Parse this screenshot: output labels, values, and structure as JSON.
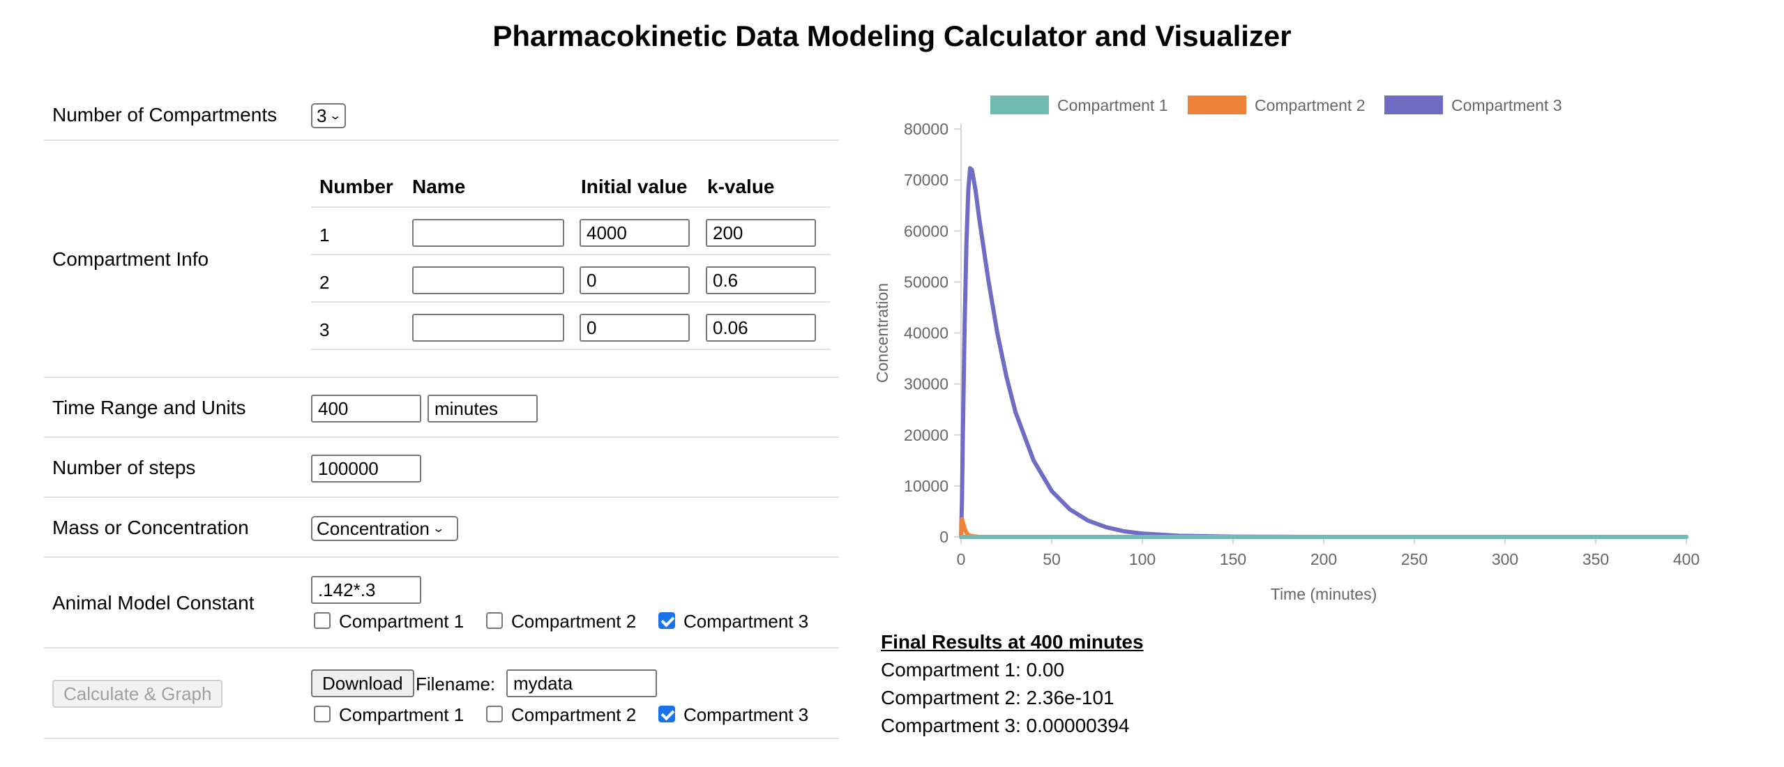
{
  "title": "Pharmacokinetic Data Modeling Calculator and Visualizer",
  "form": {
    "compartments_label": "Number of Compartments",
    "compartments_value": "3",
    "info_label": "Compartment Info",
    "table": {
      "headers": [
        "Number",
        "Name",
        "Initial value",
        "k-value"
      ],
      "rows": [
        {
          "number": "1",
          "name": "",
          "initial": "4000",
          "k": "200"
        },
        {
          "number": "2",
          "name": "",
          "initial": "0",
          "k": "0.6"
        },
        {
          "number": "3",
          "name": "",
          "initial": "0",
          "k": "0.06"
        }
      ]
    },
    "time_label": "Time Range and Units",
    "time_value": "400",
    "time_units": "minutes",
    "steps_label": "Number of steps",
    "steps_value": "100000",
    "mass_label": "Mass or Concentration",
    "mass_value": "Concentration",
    "animal_label": "Animal Model Constant",
    "animal_value": ".142*.3",
    "animal_checks": [
      {
        "label": "Compartment 1",
        "checked": false
      },
      {
        "label": "Compartment 2",
        "checked": false
      },
      {
        "label": "Compartment 3",
        "checked": true
      }
    ],
    "calc_button": "Calculate & Graph",
    "download_button": "Download",
    "filename_label": "Filename:",
    "filename_value": "mydata",
    "download_checks": [
      {
        "label": "Compartment 1",
        "checked": false
      },
      {
        "label": "Compartment 2",
        "checked": false
      },
      {
        "label": "Compartment 3",
        "checked": true
      }
    ]
  },
  "chart_data": {
    "type": "line",
    "xlabel": "Time (minutes)",
    "ylabel": "Concentration",
    "xlim": [
      0,
      400
    ],
    "ylim": [
      0,
      80000
    ],
    "xticks": [
      0,
      50,
      100,
      150,
      200,
      250,
      300,
      350,
      400
    ],
    "yticks": [
      0,
      10000,
      20000,
      30000,
      40000,
      50000,
      60000,
      70000,
      80000
    ],
    "legend_position": "top",
    "grid": false,
    "series": [
      {
        "name": "Compartment 1",
        "color": "#72bbb3",
        "x": [
          0,
          0.5,
          1,
          2,
          400
        ],
        "y": [
          0,
          0,
          0,
          0,
          0
        ]
      },
      {
        "name": "Compartment 2",
        "color": "#ed8238",
        "x": [
          0,
          0.5,
          1,
          2,
          3,
          4,
          6,
          10,
          400
        ],
        "y": [
          0,
          3500,
          2900,
          1600,
          800,
          400,
          150,
          0,
          0
        ]
      },
      {
        "name": "Compartment 3",
        "color": "#6f6cc3",
        "x": [
          0,
          0.5,
          1,
          2,
          3,
          4,
          5,
          6,
          8,
          10,
          15,
          20,
          25,
          30,
          40,
          50,
          60,
          70,
          80,
          90,
          100,
          120,
          150,
          200,
          250,
          300,
          350,
          400
        ],
        "y": [
          0,
          7000,
          20000,
          42000,
          58000,
          68000,
          72300,
          72000,
          68000,
          62500,
          50500,
          40000,
          31500,
          24500,
          15000,
          9000,
          5400,
          3200,
          1900,
          1100,
          650,
          220,
          50,
          5,
          0,
          0,
          0,
          0
        ]
      }
    ]
  },
  "results": {
    "title": "Final Results at 400 minutes",
    "lines": [
      "Compartment 1: 0.00",
      "Compartment 2: 2.36e-101",
      "Compartment 3: 0.00000394"
    ]
  }
}
